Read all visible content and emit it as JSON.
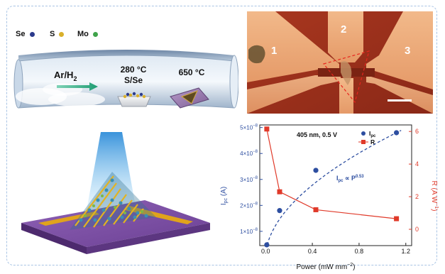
{
  "panel_a": {
    "legend": [
      {
        "element": "Se",
        "color": "#2b3a8c"
      },
      {
        "element": "S",
        "color": "#d9b02b"
      },
      {
        "element": "Mo",
        "color": "#3fa34a"
      }
    ],
    "gas_label": "Ar/H",
    "gas_sub": "2",
    "zone1_temp": "280 °C",
    "zone1_source": "S/Se",
    "zone2_temp": "650 °C"
  },
  "panel_b": {
    "electrode_labels": [
      "1",
      "2",
      "3"
    ]
  },
  "chart_data": {
    "type": "scatter",
    "xlabel": "Power (mW mm",
    "xlabel_sup": "−2",
    "xlabel_end": ")",
    "ylabel_left": "I",
    "ylabel_left_sub": "pc",
    "ylabel_left_unit": " (A)",
    "ylabel_right": "R (A W",
    "ylabel_right_sup": "−1",
    "ylabel_right_end": ")",
    "annotation": "405 nm, 0.5 V",
    "fit_label": "I",
    "fit_label_sub": "pc",
    "fit_label_mid": " ∝ P",
    "fit_label_sup": "0.53",
    "xlim": [
      -0.05,
      1.25
    ],
    "xticks": [
      "0.0",
      "0.4",
      "0.8",
      "1.2"
    ],
    "xtick_values": [
      0.0,
      0.4,
      0.8,
      1.2
    ],
    "ylim_left": [
      4.5e-09,
      5.1e-08
    ],
    "yticks_left": [
      "1×10",
      "2×10",
      "3×10",
      "4×10",
      "5×10"
    ],
    "yticks_left_exp": "−8",
    "ytick_left_values": [
      1e-08,
      2e-08,
      3e-08,
      4e-08,
      5e-08
    ],
    "ylim_right": [
      -1.0,
      6.4
    ],
    "yticks_right": [
      "0",
      "2",
      "4",
      "6"
    ],
    "ytick_right_values": [
      0,
      2,
      4,
      6
    ],
    "series": [
      {
        "name": "I",
        "name_sub": "pc",
        "color": "#2d4ea0",
        "marker": "circle",
        "axis": "left",
        "x": [
          0.01,
          0.12,
          0.43,
          1.12
        ],
        "y": [
          4.8e-09,
          1.8e-08,
          3.35e-08,
          4.8e-08
        ]
      },
      {
        "name": "R",
        "color": "#e03a2a",
        "marker": "square",
        "axis": "right",
        "x": [
          0.01,
          0.12,
          0.43,
          1.12
        ],
        "y": [
          6.15,
          2.3,
          1.2,
          0.65
        ]
      }
    ],
    "fit": {
      "exponent": 0.53,
      "color": "#2d4ea0",
      "style": "dashed"
    }
  }
}
